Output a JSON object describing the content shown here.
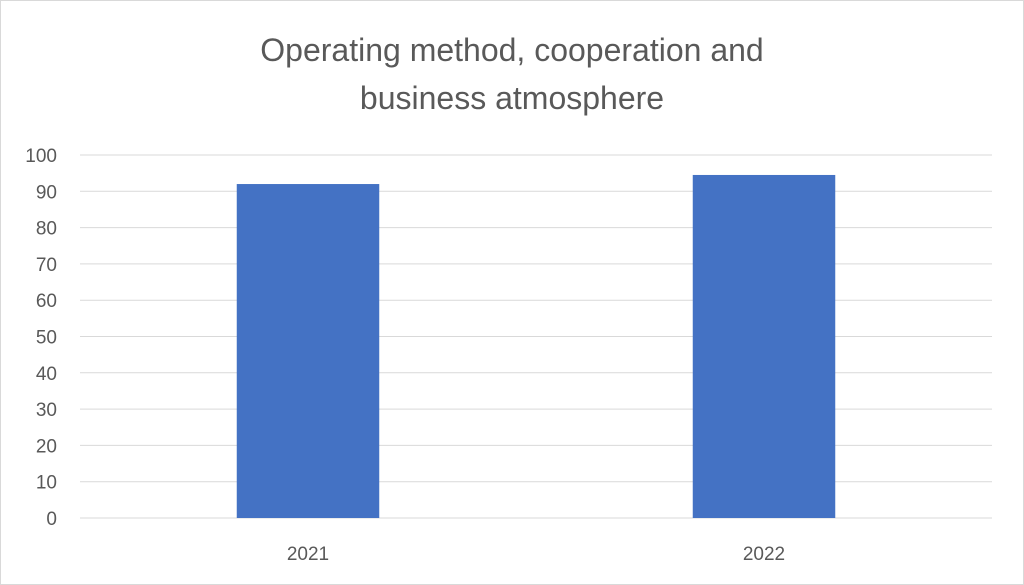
{
  "chart_data": {
    "type": "bar",
    "title_lines": [
      "Operating method, cooperation and",
      "business atmosphere"
    ],
    "categories": [
      "2021",
      "2022"
    ],
    "series": [
      {
        "values": [
          92,
          94.5
        ]
      }
    ],
    "xlabel": "",
    "ylabel": "",
    "ylim": [
      0,
      100
    ],
    "yticks": [
      0,
      10,
      20,
      30,
      40,
      50,
      60,
      70,
      80,
      90,
      100
    ],
    "grid": true,
    "legend": "none",
    "colors": {
      "bar": "#4472C4",
      "grid": "#d9d9d9",
      "text": "#595959"
    }
  }
}
